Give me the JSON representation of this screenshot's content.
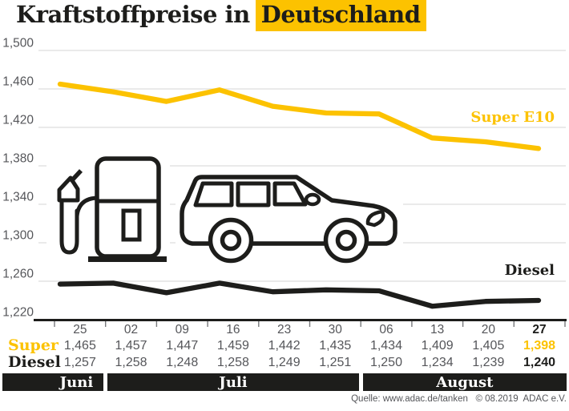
{
  "title": {
    "plain": "Kraftstoffpreise in",
    "highlight": "Deutschland"
  },
  "colors": {
    "accent_yellow": "#fcc200",
    "ink": "#1d1d1b",
    "muted_text": "#55565a",
    "gridline": "#e3e3e3"
  },
  "chart_data": {
    "type": "line",
    "title": "Kraftstoffpreise in Deutschland",
    "x_dates": [
      "25",
      "02",
      "09",
      "16",
      "23",
      "30",
      "06",
      "13",
      "20",
      "27"
    ],
    "months": [
      {
        "label": "Juni",
        "span_cols": 1
      },
      {
        "label": "Juli",
        "span_cols": 5
      },
      {
        "label": "August",
        "span_cols": 4
      }
    ],
    "ylim": [
      1220,
      1500
    ],
    "ytick_values": [
      1500,
      1460,
      1420,
      1380,
      1340,
      1300,
      1260,
      1220
    ],
    "ytick_labels": [
      "1,500",
      "1,460",
      "1,420",
      "1,380",
      "1,340",
      "1,300",
      "1,260",
      "1,220"
    ],
    "grid": "horizontal",
    "legend_position": "line-end labels",
    "series": [
      {
        "name": "Super E10",
        "key": "super",
        "color": "#fcc200",
        "values": [
          1465,
          1457,
          1447,
          1459,
          1442,
          1435,
          1434,
          1409,
          1405,
          1398
        ],
        "values_formatted": [
          "1,465",
          "1,457",
          "1,447",
          "1,459",
          "1,442",
          "1,435",
          "1,434",
          "1,409",
          "1,405",
          "1,398"
        ]
      },
      {
        "name": "Diesel",
        "key": "diesel",
        "color": "#1d1d1b",
        "values": [
          1257,
          1258,
          1248,
          1258,
          1249,
          1251,
          1250,
          1234,
          1239,
          1240
        ],
        "values_formatted": [
          "1,257",
          "1,258",
          "1,248",
          "1,258",
          "1,249",
          "1,251",
          "1,250",
          "1,234",
          "1,239",
          "1,240"
        ]
      }
    ]
  },
  "table": {
    "super_label": "Super",
    "diesel_label": "Diesel"
  },
  "icons": {
    "pump": "fuel-pump",
    "vehicle": "car"
  },
  "source": "Quelle: www.adac.de/tanken   © 08.2019  ADAC e.V."
}
